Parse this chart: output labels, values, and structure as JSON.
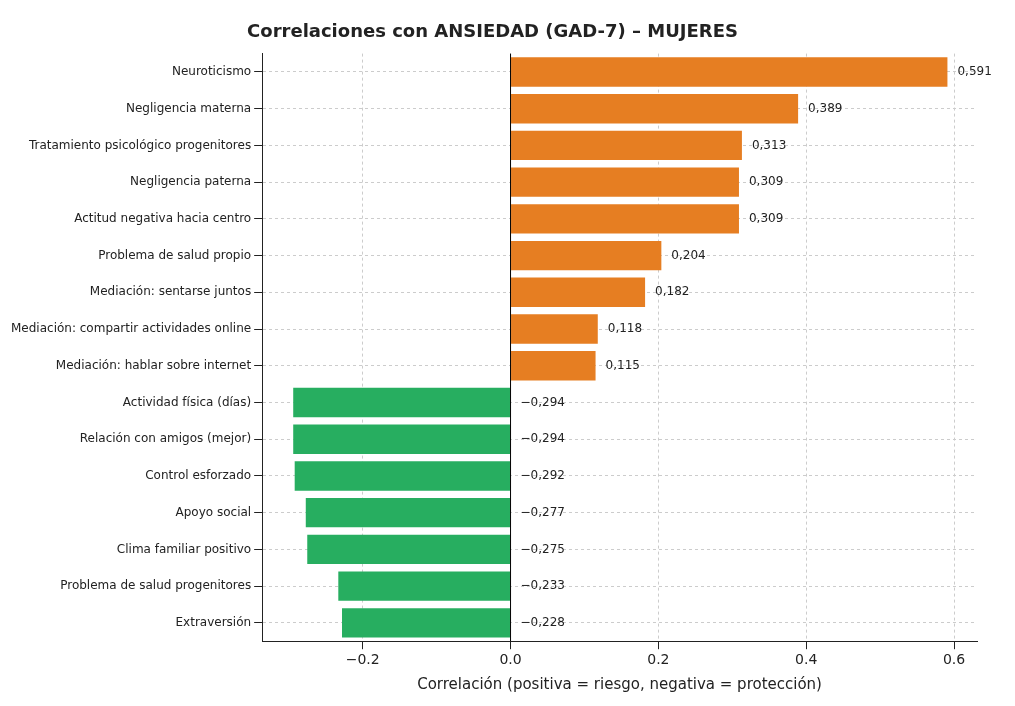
{
  "chart_data": {
    "type": "bar",
    "orientation": "horizontal",
    "title": "Correlaciones con ANSIEDAD (GAD-7) – MUJERES",
    "xlabel": "Correlación (positiva = riesgo, negativa = protección)",
    "categories": [
      "Neuroticismo",
      "Negligencia materna",
      "Tratamiento psicológico progenitores",
      "Negligencia paterna",
      "Actitud negativa hacia centro",
      "Problema de salud propio",
      "Mediación: sentarse juntos",
      "Mediación: compartir actividades online",
      "Mediación: hablar sobre internet",
      "Actividad física (días)",
      "Relación con amigos (mejor)",
      "Control esforzado",
      "Apoyo social",
      "Clima familiar positivo",
      "Problema de salud progenitores",
      "Extraversión"
    ],
    "values": [
      0.591,
      0.389,
      0.313,
      0.309,
      0.309,
      0.204,
      0.182,
      0.118,
      0.115,
      -0.294,
      -0.294,
      -0.292,
      -0.277,
      -0.275,
      -0.233,
      -0.228
    ],
    "value_labels": [
      "0,591",
      "0,389",
      "0,313",
      "0,309",
      "0,309",
      "0,204",
      "0,182",
      "0,118",
      "0,115",
      "−0,294",
      "−0,294",
      "−0,292",
      "−0,277",
      "−0,275",
      "−0,233",
      "−0,228"
    ],
    "colors": [
      "#e67e22",
      "#e67e22",
      "#e67e22",
      "#e67e22",
      "#e67e22",
      "#e67e22",
      "#e67e22",
      "#e67e22",
      "#e67e22",
      "#27ae60",
      "#27ae60",
      "#27ae60",
      "#27ae60",
      "#27ae60",
      "#27ae60",
      "#27ae60"
    ],
    "xlim": [
      -0.336,
      0.631
    ],
    "xticks": [
      {
        "value": -0.2,
        "label": "−0.2"
      },
      {
        "value": 0,
        "label": "0.0"
      },
      {
        "value": 0.2,
        "label": "0.2"
      },
      {
        "value": 0.4,
        "label": "0.4"
      },
      {
        "value": 0.6,
        "label": "0.6"
      }
    ],
    "ref_lines": [
      {
        "axis": "x",
        "value": 0,
        "color": "#000000"
      }
    ],
    "grid": true,
    "legend": false
  }
}
